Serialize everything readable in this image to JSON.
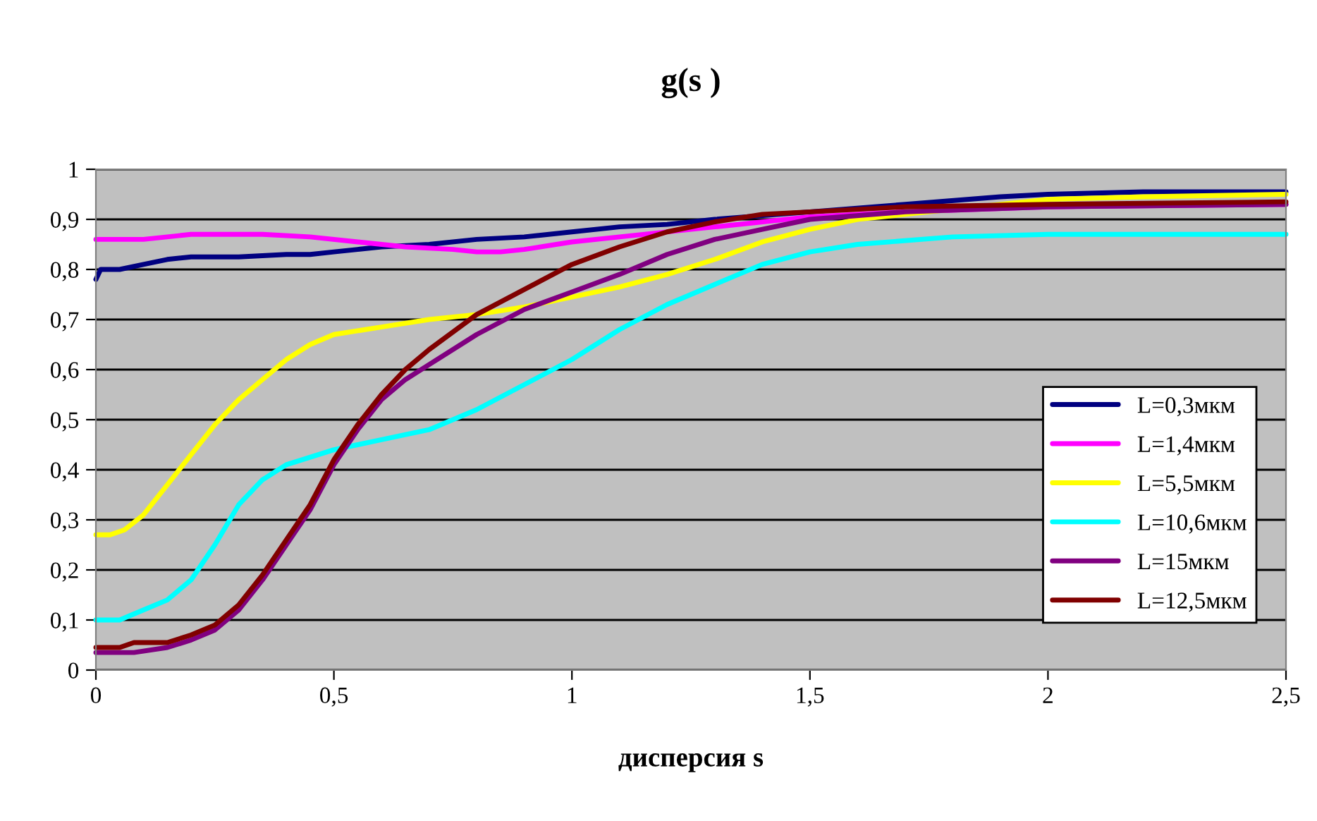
{
  "chart_data": {
    "type": "line",
    "title": "g(s )",
    "xlabel": "дисперсия s",
    "xlim": [
      0,
      2.5
    ],
    "xticks": [
      0,
      {
        "value": 0.5,
        "label": "0,5"
      },
      1,
      {
        "value": 1.5,
        "label": "1,5"
      },
      2,
      {
        "value": 2.5,
        "label": "2,5"
      }
    ],
    "ylim": [
      0,
      1
    ],
    "yticks": [
      0,
      {
        "value": 0.1,
        "label": "0,1"
      },
      {
        "value": 0.2,
        "label": "0,2"
      },
      {
        "value": 0.3,
        "label": "0,3"
      },
      {
        "value": 0.4,
        "label": "0,4"
      },
      {
        "value": 0.5,
        "label": "0,5"
      },
      {
        "value": 0.6,
        "label": "0,6"
      },
      {
        "value": 0.7,
        "label": "0,7"
      },
      {
        "value": 0.8,
        "label": "0,8"
      },
      {
        "value": 0.9,
        "label": "0,9"
      },
      1
    ],
    "grid": "y",
    "legend": "right",
    "marker": "none",
    "line_style": "solid",
    "series": [
      {
        "name": "L=0,3мкм",
        "color": "#000080",
        "x": [
          0,
          0.01,
          0.05,
          0.1,
          0.15,
          0.2,
          0.3,
          0.4,
          0.45,
          0.5,
          0.55,
          0.6,
          0.7,
          0.8,
          0.9,
          1.0,
          1.1,
          1.2,
          1.3,
          1.5,
          1.7,
          1.9,
          2.0,
          2.2,
          2.5
        ],
        "values": [
          0.78,
          0.8,
          0.8,
          0.81,
          0.82,
          0.825,
          0.825,
          0.83,
          0.83,
          0.835,
          0.84,
          0.845,
          0.85,
          0.86,
          0.865,
          0.875,
          0.885,
          0.89,
          0.9,
          0.915,
          0.93,
          0.945,
          0.95,
          0.955,
          0.955
        ]
      },
      {
        "name": "L=1,4мкм",
        "color": "#ff00ff",
        "x": [
          0,
          0.1,
          0.2,
          0.35,
          0.45,
          0.55,
          0.65,
          0.75,
          0.8,
          0.85,
          0.9,
          1.0,
          1.1,
          1.3,
          1.5,
          1.7,
          2.0,
          2.5
        ],
        "values": [
          0.86,
          0.86,
          0.87,
          0.87,
          0.865,
          0.855,
          0.845,
          0.84,
          0.835,
          0.835,
          0.84,
          0.855,
          0.865,
          0.885,
          0.905,
          0.915,
          0.925,
          0.93
        ]
      },
      {
        "name": "L=5,5мкм",
        "color": "#ffff00",
        "x": [
          0,
          0.03,
          0.06,
          0.1,
          0.15,
          0.2,
          0.25,
          0.3,
          0.35,
          0.4,
          0.45,
          0.5,
          0.6,
          0.7,
          0.8,
          0.9,
          1.0,
          1.1,
          1.2,
          1.3,
          1.4,
          1.5,
          1.6,
          2.0,
          2.2,
          2.5
        ],
        "values": [
          0.27,
          0.27,
          0.28,
          0.31,
          0.37,
          0.43,
          0.49,
          0.54,
          0.58,
          0.62,
          0.65,
          0.67,
          0.685,
          0.7,
          0.71,
          0.725,
          0.745,
          0.765,
          0.79,
          0.82,
          0.855,
          0.88,
          0.9,
          0.94,
          0.945,
          0.95
        ]
      },
      {
        "name": "L=10,6мкм",
        "color": "#00ffff",
        "x": [
          0,
          0.05,
          0.1,
          0.15,
          0.2,
          0.25,
          0.3,
          0.35,
          0.4,
          0.5,
          0.55,
          0.6,
          0.7,
          0.8,
          0.9,
          1.0,
          1.1,
          1.2,
          1.3,
          1.4,
          1.5,
          1.6,
          1.8,
          2.0,
          2.5
        ],
        "values": [
          0.1,
          0.1,
          0.12,
          0.14,
          0.18,
          0.25,
          0.33,
          0.38,
          0.41,
          0.44,
          0.45,
          0.46,
          0.48,
          0.52,
          0.57,
          0.62,
          0.68,
          0.73,
          0.77,
          0.81,
          0.835,
          0.85,
          0.865,
          0.87,
          0.87
        ]
      },
      {
        "name": "L=15мкм",
        "color": "#800080",
        "x": [
          0,
          0.08,
          0.15,
          0.2,
          0.25,
          0.3,
          0.35,
          0.4,
          0.45,
          0.5,
          0.55,
          0.6,
          0.65,
          0.7,
          0.8,
          0.9,
          1.0,
          1.1,
          1.2,
          1.3,
          1.4,
          1.5,
          1.7,
          2.0,
          2.5
        ],
        "values": [
          0.035,
          0.035,
          0.045,
          0.06,
          0.08,
          0.12,
          0.18,
          0.25,
          0.32,
          0.41,
          0.48,
          0.54,
          0.58,
          0.61,
          0.67,
          0.72,
          0.755,
          0.79,
          0.83,
          0.86,
          0.88,
          0.9,
          0.915,
          0.925,
          0.93
        ]
      },
      {
        "name": "L=12,5мкм",
        "color": "#800000",
        "x": [
          0,
          0.05,
          0.08,
          0.15,
          0.2,
          0.25,
          0.3,
          0.35,
          0.4,
          0.45,
          0.5,
          0.55,
          0.6,
          0.65,
          0.7,
          0.8,
          0.9,
          1.0,
          1.1,
          1.2,
          1.3,
          1.4,
          1.5,
          1.7,
          2.0,
          2.5
        ],
        "values": [
          0.045,
          0.045,
          0.055,
          0.055,
          0.07,
          0.09,
          0.13,
          0.19,
          0.26,
          0.33,
          0.42,
          0.49,
          0.55,
          0.6,
          0.64,
          0.71,
          0.76,
          0.81,
          0.845,
          0.875,
          0.895,
          0.91,
          0.915,
          0.925,
          0.93,
          0.935
        ]
      }
    ]
  }
}
